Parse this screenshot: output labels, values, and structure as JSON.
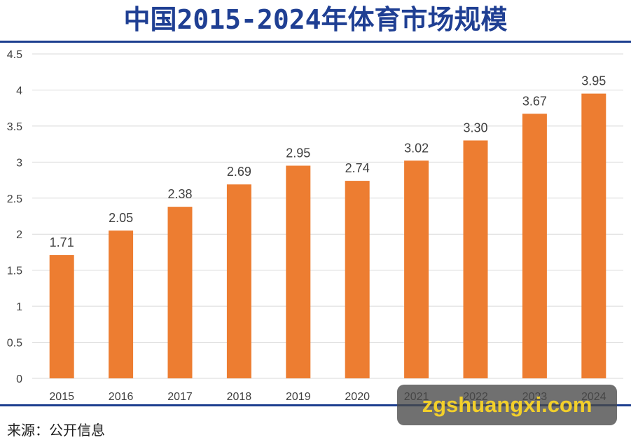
{
  "header": {
    "title": "中国2015-2024年体育市场规模"
  },
  "footer": {
    "source": "来源：公开信息",
    "watermark": "zgshuangxi.com"
  },
  "colors": {
    "bar": "#ED7D31",
    "grid": "#D9D9D9",
    "title": "#1F3F93",
    "rule": "#1D3F8F",
    "axis_text": "#404040"
  },
  "chart_data": {
    "type": "bar",
    "title": "中国2015-2024年体育市场规模",
    "xlabel": "",
    "ylabel": "",
    "categories": [
      "2015",
      "2016",
      "2017",
      "2018",
      "2019",
      "2020",
      "2021",
      "2022",
      "2023",
      "2024"
    ],
    "values": [
      1.71,
      2.05,
      2.38,
      2.69,
      2.95,
      2.74,
      3.02,
      3.3,
      3.67,
      3.95
    ],
    "data_labels": [
      "1.71",
      "2.05",
      "2.38",
      "2.69",
      "2.95",
      "2.74",
      "3.02",
      "3.30",
      "3.67",
      "3.95"
    ],
    "ylim": [
      0,
      4.5
    ],
    "y_ticks": [
      "0",
      "0.5",
      "1",
      "1.5",
      "2",
      "2.5",
      "3",
      "3.5",
      "4",
      "4.5"
    ],
    "grid": true,
    "legend": "none"
  }
}
